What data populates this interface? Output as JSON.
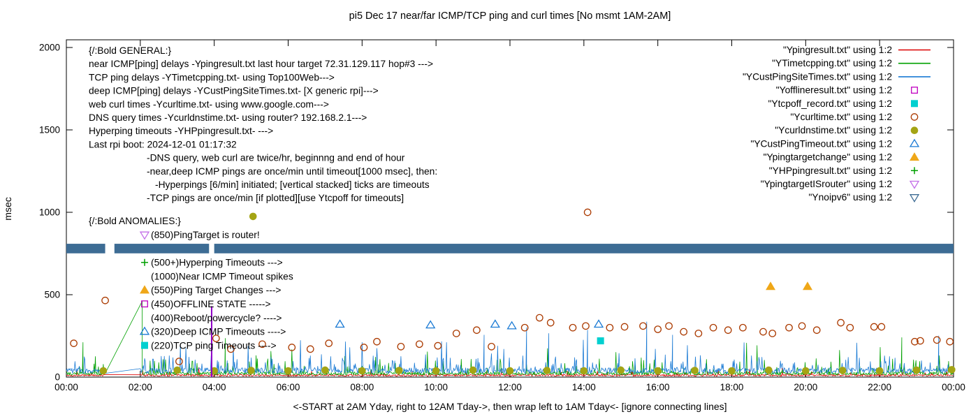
{
  "title": "pi5 Dec 17  near/far ICMP/TCP ping and curl times [No msmt 1AM-2AM]",
  "xlabel": "<-START at 2AM Yday, right to 12AM Tday->, then wrap left to 1AM Tday<- [ignore connecting lines]",
  "ylabel": "msec",
  "axes": {
    "y_ticks": [
      0,
      500,
      1000,
      1500,
      2000
    ],
    "x_ticks": [
      "00:00",
      "02:00",
      "04:00",
      "06:00",
      "08:00",
      "10:00",
      "12:00",
      "14:00",
      "16:00",
      "18:00",
      "20:00",
      "22:00",
      "00:00"
    ],
    "ylim": [
      0,
      2000
    ],
    "x_hours_range": [
      0,
      24
    ],
    "grid": false
  },
  "legend": {
    "position": "top-right",
    "entries": [
      {
        "label": "\"Ypingresult.txt\" using 1:2",
        "sample": "line",
        "color": "#dc0000"
      },
      {
        "label": "\"YTimetcpping.txt\" using 1:2",
        "sample": "line",
        "color": "#00a000"
      },
      {
        "label": "\"YCustPingSiteTimes.txt\" using 1:2",
        "sample": "line",
        "color": "#1a7ad4"
      },
      {
        "label": "\"Yofflineresult.txt\" using 1:2",
        "sample": "square-open",
        "color": "#c000c0"
      },
      {
        "label": "\"Ytcpoff_record.txt\" using 1:2",
        "sample": "square-filled",
        "color": "#00d0d0"
      },
      {
        "label": "\"Ycurltime.txt\" using 1:2",
        "sample": "circle-open",
        "color": "#ab3a00"
      },
      {
        "label": "\"Ycurldnstime.txt\" using 1:2",
        "sample": "circle-filled",
        "color": "#a4a414"
      },
      {
        "label": "\"YCustPingTimeout.txt\" using 1:2",
        "sample": "triangle-open",
        "color": "#1a7ad4"
      },
      {
        "label": "\"Ypingtargetchange\" using 1:2",
        "sample": "triangle-filled",
        "color": "#efa718"
      },
      {
        "label": "\"YHPpingresult.txt\" using 1:2",
        "sample": "plus",
        "color": "#00a000"
      },
      {
        "label": "\"YpingtargetISrouter\" using 1:2",
        "sample": "triangle-down-open",
        "color": "#c36fe8"
      },
      {
        "label": "\"Ynoipv6\" using 1:2",
        "sample": "triangle-down-open",
        "color": "#3d6c94"
      }
    ]
  },
  "annotations": {
    "general": {
      "lines": [
        {
          "text": "{/:Bold GENERAL:}",
          "indent": 0
        },
        {
          "text": "near ICMP[ping] delays -Ypingresult.txt last hour target 72.31.129.117 hop#3 --->",
          "indent": 0
        },
        {
          "text": "TCP ping delays -YTimetcpping.txt- using Top100Web--->",
          "indent": 0
        },
        {
          "text": "deep ICMP[ping] delays -YCustPingSiteTimes.txt- [X generic rpi]--->",
          "indent": 0
        },
        {
          "text": "web curl times -Ycurltime.txt- using www.google.com--->",
          "indent": 0
        },
        {
          "text": "DNS query times -Ycurldnstime.txt- using router? 192.168.2.1--->",
          "indent": 0
        },
        {
          "text": "Hyperping timeouts -YHPpingresult.txt- --->",
          "indent": 0
        },
        {
          "text": "Last rpi boot: 2024-12-01 01:17:32",
          "indent": 0
        },
        {
          "text": "-DNS query, web curl are twice/hr, beginnng and end of hour",
          "indent": 1
        },
        {
          "text": "-near,deep ICMP pings are once/min until timeout[1000 msec], then:",
          "indent": 1
        },
        {
          "text": "-Hyperpings [6/min] initiated; [vertical stacked] ticks are timeouts",
          "indent": 2
        },
        {
          "text": "-TCP pings are once/min [if plotted][use Ytcpoff for timeouts]",
          "indent": 1
        }
      ]
    },
    "anomalies": {
      "heading": "{/:Bold ANOMALIES:}",
      "rows": [
        {
          "marker": "triangle-down-open",
          "color": "#c36fe8",
          "text": "(850)PingTarget is router!"
        },
        {
          "marker": "triangle-down-filled",
          "color": "#3d6c94",
          "text": ""
        },
        {
          "marker": "plus",
          "color": "#00a000",
          "text": "(500+)Hyperping Timeouts --->"
        },
        {
          "marker": null,
          "color": null,
          "text": "(1000)Near ICMP Timeout spikes"
        },
        {
          "marker": "triangle-filled",
          "color": "#efa718",
          "text": "(550)Ping Target Changes --->"
        },
        {
          "marker": "square-open",
          "color": "#c000c0",
          "text": "(450)OFFLINE STATE ----->"
        },
        {
          "marker": null,
          "color": null,
          "text": "(400)Reboot/powercycle? ---->"
        },
        {
          "marker": "triangle-open",
          "color": "#1a7ad4",
          "text": "(320)Deep ICMP Timeouts ---->"
        },
        {
          "marker": "square-filled",
          "color": "#00d0d0",
          "text": "(220)TCP ping Timeouts ---->"
        }
      ]
    }
  },
  "chart_data": {
    "type": "line",
    "title": "pi5 Dec 17  near/far ICMP/TCP ping and curl times [No msmt 1AM-2AM]",
    "xlabel": "<-START at 2AM Yday, right to 12AM Tday->, then wrap left to 1AM Tday<- [ignore connecting lines]",
    "ylabel": "msec",
    "ylim": [
      0,
      2000
    ],
    "x_hours_range": [
      0,
      24
    ],
    "no_measurement_window_hours": [
      1,
      2
    ],
    "series": [
      {
        "name": "Ypingresult.txt",
        "type": "line",
        "color": "#dc0000",
        "seed": 11,
        "base": 5,
        "jitter": 12,
        "p1": 0.05,
        "amp1": 30,
        "p2": 0.004,
        "amp2": 45,
        "gap": [
          1.05,
          2.0
        ],
        "spikes": []
      },
      {
        "name": "YTimetcpping.txt",
        "type": "line",
        "color": "#00a000",
        "seed": 22,
        "base": 12,
        "jitter": 20,
        "p1": 0.1,
        "amp1": 90,
        "p2": 0.012,
        "amp2": 160,
        "gap": [
          1.05,
          2.04
        ],
        "spikes": [
          [
            0.45,
            210
          ],
          [
            2.05,
            460
          ],
          [
            4.3,
            235
          ],
          [
            22.6,
            240
          ]
        ]
      },
      {
        "name": "YCustPingSiteTimes.txt",
        "type": "line",
        "color": "#1a7ad4",
        "seed": 33,
        "base": 22,
        "jitter": 34,
        "p1": 0.12,
        "amp1": 90,
        "p2": 0.015,
        "amp2": 190,
        "gap": [
          1.05,
          2.0
        ],
        "spikes": [
          [
            11.3,
            255
          ],
          [
            12.45,
            300
          ],
          [
            13.05,
            265
          ],
          [
            14.1,
            285
          ],
          [
            15.7,
            335
          ],
          [
            16.4,
            255
          ],
          [
            23.6,
            250
          ]
        ]
      },
      {
        "name": "Yofflineresult.txt",
        "type": "scatter",
        "marker": "square-open",
        "color": "#c000c0",
        "points": []
      },
      {
        "name": "Ytcpoff_record.txt",
        "type": "scatter",
        "marker": "square-filled",
        "color": "#00d0d0",
        "points": [
          [
            14.45,
            220
          ]
        ]
      },
      {
        "name": "Ycurltime.txt",
        "type": "scatter",
        "marker": "circle-open",
        "color": "#ab3a00",
        "points": [
          [
            0.2,
            205
          ],
          [
            1.05,
            465
          ],
          [
            3.05,
            95
          ],
          [
            4.05,
            235
          ],
          [
            4.45,
            170
          ],
          [
            5.3,
            200
          ],
          [
            6.1,
            180
          ],
          [
            6.6,
            170
          ],
          [
            7.1,
            205
          ],
          [
            8.05,
            180
          ],
          [
            8.4,
            215
          ],
          [
            9.05,
            185
          ],
          [
            9.55,
            200
          ],
          [
            10.05,
            190
          ],
          [
            10.55,
            265
          ],
          [
            11.1,
            285
          ],
          [
            11.5,
            185
          ],
          [
            12.4,
            300
          ],
          [
            12.8,
            360
          ],
          [
            13.1,
            330
          ],
          [
            13.7,
            300
          ],
          [
            14.05,
            310
          ],
          [
            14.1,
            1000
          ],
          [
            14.7,
            300
          ],
          [
            15.1,
            305
          ],
          [
            15.6,
            310
          ],
          [
            16.0,
            290
          ],
          [
            16.3,
            310
          ],
          [
            16.7,
            275
          ],
          [
            17.1,
            265
          ],
          [
            17.5,
            300
          ],
          [
            17.9,
            285
          ],
          [
            18.3,
            300
          ],
          [
            18.85,
            275
          ],
          [
            19.1,
            265
          ],
          [
            19.55,
            300
          ],
          [
            19.9,
            310
          ],
          [
            20.3,
            285
          ],
          [
            20.95,
            330
          ],
          [
            21.2,
            300
          ],
          [
            21.85,
            305
          ],
          [
            22.05,
            305
          ],
          [
            22.95,
            215
          ],
          [
            23.1,
            220
          ],
          [
            23.55,
            225
          ],
          [
            23.9,
            215
          ]
        ]
      },
      {
        "name": "Ycurldnstime.txt",
        "type": "scatter",
        "marker": "circle-filled",
        "color": "#a4a414",
        "points": [
          [
            1.0,
            38
          ],
          [
            3.0,
            42
          ],
          [
            4.0,
            38
          ],
          [
            5.0,
            40
          ],
          [
            5.05,
            975
          ],
          [
            6.0,
            38
          ],
          [
            7.0,
            42
          ],
          [
            8.0,
            38
          ],
          [
            9.0,
            40
          ],
          [
            10.0,
            38
          ],
          [
            11.0,
            42
          ],
          [
            12.0,
            38
          ],
          [
            13.0,
            40
          ],
          [
            14.0,
            38
          ],
          [
            15.0,
            42
          ],
          [
            16.0,
            38
          ],
          [
            17.0,
            40
          ],
          [
            18.0,
            38
          ],
          [
            19.0,
            42
          ],
          [
            20.0,
            38
          ],
          [
            21.0,
            40
          ],
          [
            22.0,
            38
          ],
          [
            23.0,
            42
          ],
          [
            23.95,
            45
          ]
        ]
      },
      {
        "name": "YCustPingTimeout.txt",
        "type": "scatter",
        "marker": "triangle-open",
        "color": "#1a7ad4",
        "points": [
          [
            7.4,
            320
          ],
          [
            9.85,
            315
          ],
          [
            11.6,
            320
          ],
          [
            12.05,
            310
          ],
          [
            14.4,
            320
          ]
        ]
      },
      {
        "name": "Ypingtargetchange",
        "type": "scatter",
        "marker": "triangle-filled",
        "color": "#efa718",
        "points": [
          [
            19.05,
            550
          ],
          [
            20.05,
            550
          ]
        ]
      },
      {
        "name": "YHPpingresult.txt",
        "type": "scatter",
        "marker": "plus",
        "color": "#00a000",
        "points": []
      },
      {
        "name": "YpingtargetISrouter",
        "type": "scatter",
        "marker": "triangle-down-open",
        "color": "#c36fe8",
        "points": []
      },
      {
        "name": "Ynoipv6",
        "type": "band",
        "color": "#3d6c94",
        "value": 780,
        "thickness_msec": 58,
        "gaps_hours": [
          [
            1.05,
            1.3
          ],
          [
            3.86,
            4.0
          ]
        ]
      }
    ],
    "events": [
      {
        "type": "vline",
        "hour": 3.93,
        "to_msec": 430,
        "color": "#8f00c7",
        "note": "reboot spike"
      }
    ]
  }
}
